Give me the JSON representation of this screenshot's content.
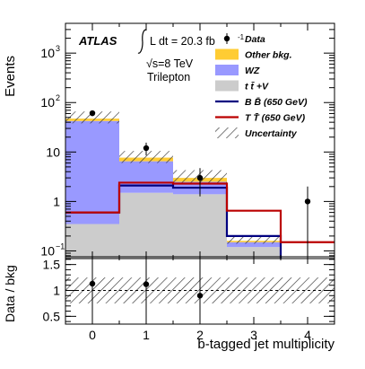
{
  "chart_data": [
    {
      "type": "bar",
      "role": "main",
      "ylabel": "Events",
      "yscale": "log",
      "ylim": [
        0.07,
        4000
      ],
      "xlim": [
        -0.5,
        4.5
      ],
      "bin_centers": [
        0,
        1,
        2,
        3,
        4
      ],
      "y_ticks": [
        {
          "v": 0.1,
          "base": "10",
          "exp": "−1"
        },
        {
          "v": 1,
          "label": "1"
        },
        {
          "v": 10,
          "label": "10"
        },
        {
          "v": 100,
          "base": "10",
          "exp": "2"
        },
        {
          "v": 1000,
          "base": "10",
          "exp": "3"
        }
      ],
      "annotations": {
        "atlas": "ATLAS",
        "lumi": "L dt = 20.3 fb",
        "lumi_sup": "-1",
        "energy": "√s=8 TeV",
        "channel": "Trilepton"
      },
      "stack": [
        {
          "name": "t t̄ + V",
          "color": "#cccccc",
          "values": [
            0.35,
            1.5,
            1.4,
            0.12,
            0.0
          ]
        },
        {
          "name": "WZ",
          "color": "#9999ff",
          "values": [
            42,
            5.0,
            1.1,
            0.03,
            0.0
          ]
        },
        {
          "name": "Other bkg.",
          "color": "#ffcc33",
          "values": [
            5.0,
            1.2,
            0.5,
            0.01,
            0.0
          ]
        }
      ],
      "uncertainty": {
        "name": "Uncertainty",
        "low": [
          38,
          6.0,
          2.3,
          0.14,
          0.0
        ],
        "high": [
          66,
          10.5,
          4.3,
          0.2,
          0.0
        ]
      },
      "data": {
        "name": "Data",
        "values": [
          61,
          12,
          3,
          0,
          1
        ]
      },
      "signals": [
        {
          "name": "B B̄ (650 GeV)",
          "color": "#000080",
          "values": [
            0.6,
            2.1,
            1.9,
            0.2,
            0.06
          ]
        },
        {
          "name": "T T̄ (650 GeV)",
          "color": "#bb0000",
          "values": [
            0.6,
            2.4,
            2.3,
            0.65,
            0.15
          ]
        }
      ],
      "legend": [
        {
          "type": "data",
          "label": "Data"
        },
        {
          "type": "fill",
          "color": "#ffcc33",
          "label": "Other bkg."
        },
        {
          "type": "fill",
          "color": "#9999ff",
          "label": "WZ"
        },
        {
          "type": "fill",
          "color": "#cccccc",
          "label": "t t̄ +V"
        },
        {
          "type": "line",
          "color": "#000080",
          "label": "B B̄ (650 GeV)"
        },
        {
          "type": "line",
          "color": "#bb0000",
          "label": "T T̄ (650 GeV)"
        },
        {
          "type": "hatch",
          "label": "Uncertainty"
        }
      ],
      "legend_position": "top-right"
    },
    {
      "type": "scatter",
      "role": "ratio",
      "ylabel": "Data / bkg",
      "xlabel": "b-tagged jet multiplicity",
      "ylim": [
        0.35,
        1.65
      ],
      "xlim": [
        -0.5,
        4.5
      ],
      "y_ticks": [
        0.5,
        1,
        1.5
      ],
      "y_tick_labels": [
        "0.5",
        "1",
        "1.5"
      ],
      "x_ticks": [
        0,
        1,
        2,
        3,
        4
      ],
      "x_tick_labels": [
        "0",
        "1",
        "2",
        "3",
        "4"
      ],
      "band_low": [
        0.75,
        0.75,
        0.75,
        0.75,
        0.75
      ],
      "band_high": [
        1.25,
        1.25,
        1.25,
        1.25,
        1.25
      ],
      "points": [
        {
          "x": 0,
          "y": 1.13
        },
        {
          "x": 1,
          "y": 1.12
        },
        {
          "x": 2,
          "y": 0.9
        }
      ]
    }
  ]
}
